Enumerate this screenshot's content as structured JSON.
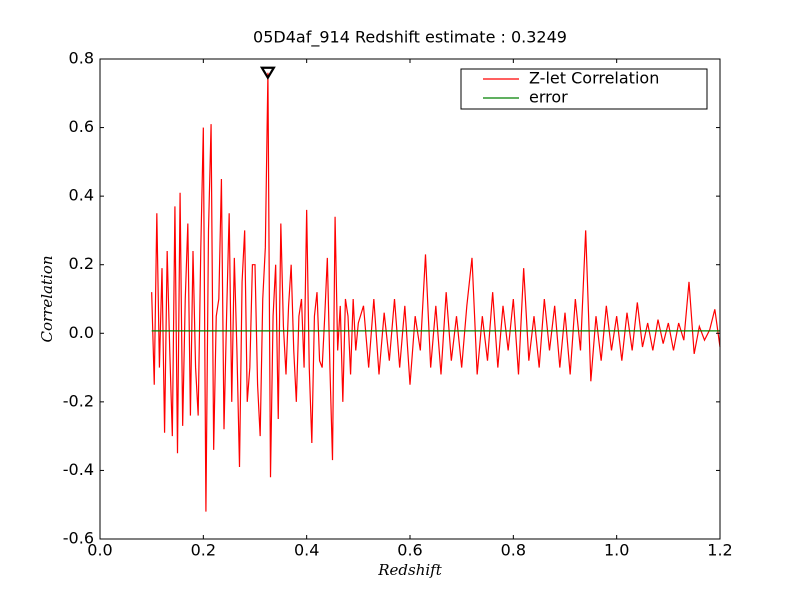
{
  "chart_data": {
    "type": "line",
    "title": "05D4af_914 Redshift estimate : 0.3249",
    "xlabel": "Redshift",
    "ylabel": "Correlation",
    "xlim": [
      0,
      1.2
    ],
    "ylim": [
      -0.6,
      0.8
    ],
    "xticks": [
      {
        "value": 0,
        "label": "0.0"
      },
      0.2,
      0.4,
      0.6,
      0.8,
      {
        "value": 1,
        "label": "1.0"
      },
      1.2
    ],
    "yticks": [
      -0.6,
      -0.4,
      -0.2,
      {
        "value": 0,
        "label": "0.0"
      },
      0.2,
      0.4,
      0.6,
      0.8
    ],
    "legend": "upper right",
    "peak": {
      "x": 0.3249,
      "y": 0.76
    },
    "series": [
      {
        "name": "Z-let Correlation",
        "color": "#ff0000",
        "x": [
          0.1,
          0.105,
          0.11,
          0.115,
          0.12,
          0.125,
          0.13,
          0.135,
          0.14,
          0.145,
          0.15,
          0.155,
          0.16,
          0.165,
          0.17,
          0.175,
          0.18,
          0.185,
          0.19,
          0.195,
          0.2,
          0.205,
          0.21,
          0.215,
          0.22,
          0.225,
          0.23,
          0.235,
          0.24,
          0.245,
          0.25,
          0.255,
          0.26,
          0.265,
          0.27,
          0.275,
          0.28,
          0.285,
          0.29,
          0.295,
          0.3,
          0.305,
          0.31,
          0.315,
          0.32,
          0.325,
          0.33,
          0.335,
          0.34,
          0.345,
          0.35,
          0.355,
          0.36,
          0.365,
          0.37,
          0.375,
          0.38,
          0.385,
          0.39,
          0.395,
          0.4,
          0.405,
          0.41,
          0.415,
          0.42,
          0.425,
          0.43,
          0.435,
          0.44,
          0.445,
          0.45,
          0.455,
          0.46,
          0.465,
          0.47,
          0.475,
          0.48,
          0.485,
          0.49,
          0.495,
          0.5,
          0.51,
          0.52,
          0.53,
          0.54,
          0.55,
          0.56,
          0.57,
          0.58,
          0.59,
          0.6,
          0.61,
          0.62,
          0.63,
          0.64,
          0.65,
          0.66,
          0.67,
          0.68,
          0.69,
          0.7,
          0.71,
          0.72,
          0.73,
          0.74,
          0.75,
          0.76,
          0.77,
          0.78,
          0.79,
          0.8,
          0.81,
          0.82,
          0.83,
          0.84,
          0.85,
          0.86,
          0.87,
          0.88,
          0.89,
          0.9,
          0.91,
          0.92,
          0.93,
          0.94,
          0.95,
          0.96,
          0.97,
          0.98,
          0.99,
          1.0,
          1.01,
          1.02,
          1.03,
          1.04,
          1.05,
          1.06,
          1.07,
          1.08,
          1.09,
          1.1,
          1.11,
          1.12,
          1.13,
          1.14,
          1.15,
          1.16,
          1.17,
          1.18,
          1.19,
          1.2
        ],
        "values": [
          0.12,
          -0.15,
          0.35,
          -0.1,
          0.19,
          -0.29,
          0.24,
          -0.05,
          -0.3,
          0.37,
          -0.35,
          0.41,
          -0.27,
          0.1,
          0.32,
          -0.24,
          0.24,
          -0.1,
          -0.24,
          0.24,
          0.6,
          -0.52,
          0.3,
          0.61,
          -0.34,
          0.05,
          0.1,
          0.45,
          -0.28,
          0.05,
          0.35,
          -0.2,
          0.22,
          -0.05,
          -0.39,
          0.15,
          0.3,
          -0.2,
          -0.1,
          0.2,
          0.2,
          -0.15,
          -0.3,
          0.1,
          0.25,
          0.76,
          -0.42,
          0.05,
          0.2,
          -0.25,
          0.32,
          0.02,
          -0.12,
          0.08,
          0.2,
          -0.05,
          -0.2,
          0.05,
          0.1,
          -0.1,
          0.36,
          -0.1,
          -0.32,
          0.05,
          0.12,
          -0.08,
          -0.1,
          0.05,
          0.22,
          -0.1,
          -0.37,
          0.34,
          -0.05,
          0.08,
          -0.2,
          0.1,
          0.05,
          -0.12,
          0.1,
          -0.05,
          0.03,
          0.08,
          -0.1,
          0.1,
          -0.12,
          0.06,
          -0.08,
          0.1,
          -0.1,
          0.08,
          -0.15,
          0.05,
          -0.05,
          0.23,
          -0.1,
          0.08,
          -0.12,
          0.12,
          -0.08,
          0.05,
          -0.1,
          0.08,
          0.22,
          -0.12,
          0.05,
          -0.08,
          0.12,
          -0.1,
          0.08,
          -0.05,
          0.1,
          -0.12,
          0.19,
          -0.08,
          0.05,
          -0.1,
          0.1,
          -0.05,
          0.08,
          -0.1,
          0.06,
          -0.12,
          0.1,
          -0.05,
          0.3,
          -0.14,
          0.05,
          -0.08,
          0.08,
          -0.05,
          0.05,
          -0.08,
          0.06,
          -0.05,
          0.09,
          -0.04,
          0.03,
          -0.05,
          0.04,
          -0.03,
          0.03,
          -0.05,
          0.03,
          -0.02,
          0.15,
          -0.06,
          0.02,
          -0.02,
          0.01,
          0.07,
          -0.04
        ]
      },
      {
        "name": "error",
        "color": "#008000",
        "x": [
          0.1,
          1.2
        ],
        "values": [
          0.007,
          0.007
        ]
      }
    ]
  }
}
